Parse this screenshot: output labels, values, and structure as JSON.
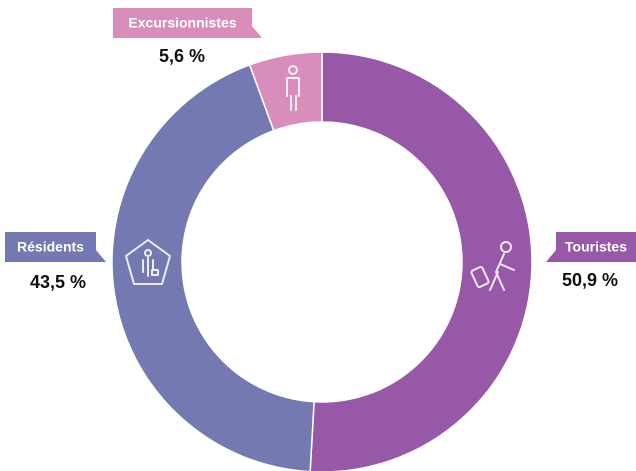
{
  "chart_data": {
    "type": "donut",
    "categories": [
      "Touristes",
      "Résidents",
      "Excursionnistes"
    ],
    "values": [
      50.9,
      43.5,
      5.6
    ],
    "value_labels": [
      "50,9 %",
      "43,5 %",
      "5,6 %"
    ],
    "colors": [
      "#9759a7",
      "#7479b1",
      "#d98dba"
    ]
  }
}
